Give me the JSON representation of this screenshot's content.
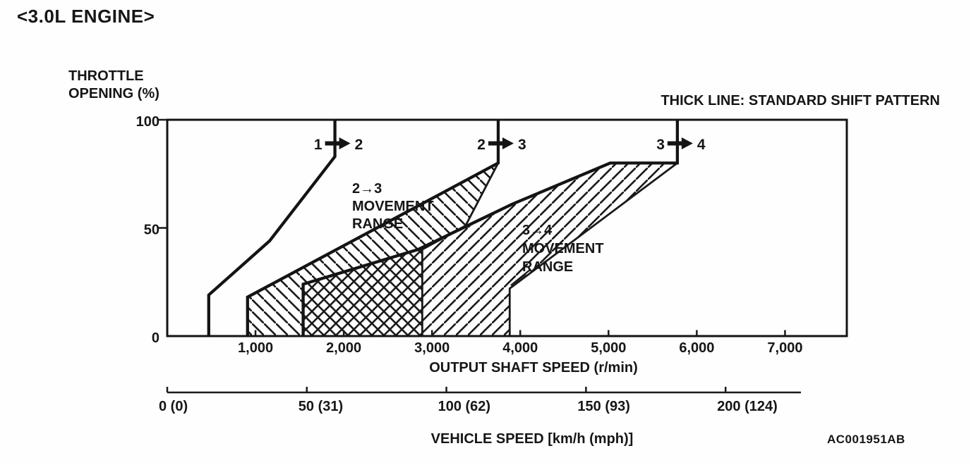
{
  "page": {
    "figure_code": "AC001951AB"
  },
  "chart_data": {
    "type": "line",
    "title": "<3.0L ENGINE>",
    "annotation": "THICK LINE: STANDARD SHIFT PATTERN",
    "ylabel": "THROTTLE OPENING (%)",
    "ylabel_lines": [
      "THROTTLE",
      "OPENING (%)"
    ],
    "xlabel": "OUTPUT SHAFT SPEED (r/min)",
    "x2label": "VEHICLE SPEED [km/h (mph)]",
    "xlim": [
      0,
      7700
    ],
    "ylim": [
      0,
      100
    ],
    "x2lim": [
      0,
      227
    ],
    "x_ticks": {
      "values": [
        1000,
        2000,
        3000,
        4000,
        5000,
        6000,
        7000
      ],
      "labels": [
        "1,000",
        "2,000",
        "3,000",
        "4,000",
        "5,000",
        "6,000",
        "7,000"
      ]
    },
    "y_ticks": {
      "values": [
        0,
        50,
        100
      ],
      "labels": [
        "0",
        "50",
        "100"
      ]
    },
    "x2_ticks": {
      "values": [
        0,
        50,
        100,
        150,
        200
      ],
      "labels": [
        "0 (0)",
        "50 (31)",
        "100 (62)",
        "150 (93)",
        "200 (124)"
      ]
    },
    "series": [
      {
        "name": "shift-1-2-standard",
        "style": "thick",
        "points": [
          [
            1900,
            100
          ],
          [
            1900,
            83
          ],
          [
            1160,
            44
          ],
          [
            470,
            19
          ],
          [
            470,
            0
          ]
        ]
      },
      {
        "name": "shift-2-3-standard",
        "style": "thick",
        "points": [
          [
            3750,
            100
          ],
          [
            3750,
            80
          ],
          [
            910,
            18
          ],
          [
            910,
            0
          ]
        ]
      },
      {
        "name": "shift-3-4-standard",
        "style": "thick",
        "points": [
          [
            5780,
            100
          ],
          [
            5780,
            80
          ],
          [
            5020,
            80
          ],
          [
            3910,
            61
          ],
          [
            2840,
            40
          ],
          [
            1540,
            24
          ],
          [
            1540,
            0
          ]
        ]
      },
      {
        "name": "shift-2-3-range-boundary",
        "style": "thin",
        "points": [
          [
            3750,
            80
          ],
          [
            3380,
            51
          ],
          [
            2890,
            40
          ],
          [
            2890,
            0
          ]
        ]
      },
      {
        "name": "shift-3-4-range-boundary",
        "style": "thin",
        "points": [
          [
            5780,
            80
          ],
          [
            3880,
            22
          ],
          [
            3880,
            0
          ]
        ]
      }
    ],
    "regions": [
      {
        "name": "2-3-movement-range",
        "hatch": "down",
        "points": [
          [
            910,
            0
          ],
          [
            910,
            18
          ],
          [
            3750,
            80
          ],
          [
            3380,
            51
          ],
          [
            2890,
            40
          ],
          [
            2890,
            0
          ]
        ]
      },
      {
        "name": "3-4-movement-range",
        "hatch": "up",
        "points": [
          [
            1540,
            0
          ],
          [
            1540,
            24
          ],
          [
            2840,
            40
          ],
          [
            3910,
            61
          ],
          [
            5020,
            80
          ],
          [
            5780,
            80
          ],
          [
            3880,
            22
          ],
          [
            3880,
            0
          ]
        ]
      }
    ],
    "shift_labels": [
      {
        "left": "1",
        "right": "2",
        "at_rpm": 1900
      },
      {
        "left": "2",
        "right": "3",
        "at_rpm": 3750
      },
      {
        "left": "3",
        "right": "4",
        "at_rpm": 5780
      }
    ],
    "region_labels": [
      {
        "lines": [
          "2→3",
          "MOVEMENT",
          "RANGE"
        ]
      },
      {
        "lines": [
          "3→4",
          "MOVEMENT",
          "RANGE"
        ]
      }
    ]
  }
}
